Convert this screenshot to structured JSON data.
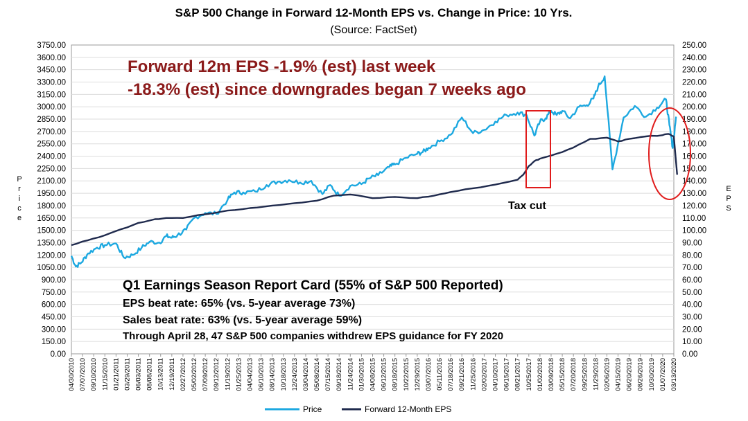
{
  "chart_data": {
    "type": "line",
    "title": "S&P 500 Change in Forward 12-Month EPS vs. Change in Price: 10 Yrs.",
    "subtitle": "(Source: FactSet)",
    "ylabel_left": "Price",
    "ylabel_right": "EPS",
    "ylim_left": [
      0,
      3750
    ],
    "ylim_right": [
      0,
      250
    ],
    "y_ticks_left": [
      "0.00",
      "150.00",
      "300.00",
      "450.00",
      "600.00",
      "750.00",
      "900.00",
      "1050.00",
      "1200.00",
      "1350.00",
      "1500.00",
      "1650.00",
      "1800.00",
      "1950.00",
      "2100.00",
      "2250.00",
      "2400.00",
      "2550.00",
      "2700.00",
      "2850.00",
      "3000.00",
      "3150.00",
      "3300.00",
      "3450.00",
      "3600.00",
      "3750.00"
    ],
    "y_ticks_right": [
      "0.00",
      "10.00",
      "20.00",
      "30.00",
      "40.00",
      "50.00",
      "60.00",
      "70.00",
      "80.00",
      "90.00",
      "100.00",
      "110.00",
      "120.00",
      "130.00",
      "140.00",
      "150.00",
      "160.00",
      "170.00",
      "180.00",
      "190.00",
      "200.00",
      "210.00",
      "220.00",
      "230.00",
      "240.00",
      "250.00"
    ],
    "x_tick_labels": [
      "04/30/2010",
      "07/07/2010",
      "09/10/2010",
      "11/15/2010",
      "01/21/2011",
      "03/29/2011",
      "06/03/2011",
      "08/08/2011",
      "10/13/2011",
      "12/19/2011",
      "02/27/2012",
      "05/02/2012",
      "07/09/2012",
      "09/12/2012",
      "11/19/2012",
      "01/25/2013",
      "04/04/2013",
      "06/10/2013",
      "08/14/2013",
      "10/18/2013",
      "12/24/2013",
      "03/04/2014",
      "05/08/2014",
      "07/15/2014",
      "09/18/2014",
      "11/24/2014",
      "01/30/2015",
      "04/08/2015",
      "06/12/2015",
      "08/18/2015",
      "10/22/2015",
      "12/29/2015",
      "03/07/2016",
      "05/11/2016",
      "07/18/2016",
      "09/21/2016",
      "11/25/2016",
      "02/02/2017",
      "04/10/2017",
      "06/15/2017",
      "08/21/2017",
      "10/25/2017",
      "01/02/2018",
      "03/09/2018",
      "05/15/2018",
      "07/20/2018",
      "09/25/2018",
      "11/29/2018",
      "02/06/2019",
      "04/15/2019",
      "06/20/2019",
      "08/26/2019",
      "10/30/2019",
      "01/07/2020",
      "03/13/2020"
    ],
    "series": [
      {
        "name": "Price",
        "axis": "left",
        "color": "#1ca8e0",
        "x": [
          0,
          0.4,
          0.9,
          1.5,
          2.3,
          3.0,
          4.0,
          4.7,
          5.5,
          6.3,
          7.0,
          7.9,
          8.5,
          9.0,
          9.5,
          10.3,
          11.0,
          12.0,
          13.0,
          14.0,
          14.6,
          15.4,
          16.5,
          17.5,
          18.5,
          19.5,
          20.5,
          21.5,
          22.5,
          23.2,
          24.0,
          25.0,
          26.0,
          26.7,
          27.5,
          28.5,
          29.0,
          30.0,
          31.0,
          31.5,
          32.0,
          33.0,
          34.0,
          35.0,
          36.0,
          37.0,
          38.0,
          39.0,
          40.0,
          40.8,
          41.5,
          42.0,
          42.5,
          43.0,
          43.5,
          44.0,
          44.7,
          45.5,
          46.2,
          46.8,
          47.2,
          47.8,
          48.5,
          49.5,
          50.5,
          51.5,
          52.5,
          53.3,
          53.6,
          53.9,
          54.2
        ],
        "values": [
          1190,
          1060,
          1110,
          1220,
          1290,
          1320,
          1340,
          1170,
          1200,
          1290,
          1360,
          1350,
          1430,
          1410,
          1440,
          1510,
          1650,
          1710,
          1700,
          1870,
          1960,
          1960,
          1970,
          2050,
          2090,
          2110,
          2080,
          2100,
          1940,
          2050,
          1920,
          2040,
          2060,
          2130,
          2170,
          2270,
          2300,
          2380,
          2430,
          2450,
          2500,
          2580,
          2660,
          2870,
          2680,
          2720,
          2820,
          2900,
          2930,
          2900,
          2650,
          2820,
          2860,
          2950,
          2900,
          2950,
          2860,
          3000,
          3020,
          3100,
          3240,
          3370,
          2240,
          2870,
          3010,
          2880,
          2990,
          3090,
          2780,
          2500,
          2880
        ],
        "note": "Price values indexed by x tick position (0 = 04/30/2010, 54 = 03/13/2020). Approximate reads."
      },
      {
        "name": "Forward 12-Month EPS",
        "axis": "right",
        "color": "#1f2a4d",
        "x": [
          0,
          1.5,
          3.0,
          4.5,
          6.0,
          7.5,
          8.5,
          10.0,
          12.0,
          14.0,
          16.0,
          18.0,
          20.0,
          22.0,
          23.5,
          25.0,
          27.0,
          29.0,
          31.0,
          32.5,
          34.0,
          36.0,
          38.0,
          40.0,
          40.5,
          41.0,
          41.5,
          42.0,
          43.5,
          45.0,
          46.5,
          48.0,
          49.0,
          50.0,
          51.5,
          53.0,
          53.5,
          54.0,
          54.3
        ],
        "values": [
          88,
          92,
          96,
          101,
          106,
          109,
          110,
          110,
          113,
          116,
          118,
          120,
          122,
          124,
          128,
          129,
          126,
          127,
          126,
          128,
          131,
          134,
          137,
          141,
          145,
          152,
          156,
          158,
          162,
          167,
          174,
          175,
          172,
          174,
          176,
          177,
          178,
          176,
          145
        ],
        "note": "EPS values on right axis. Approximate reads."
      }
    ],
    "legend": [
      "Price",
      "Forward 12-Month EPS"
    ],
    "legend_position": "bottom-center",
    "annotations": {
      "headline_1": "Forward 12m EPS -1.9% (est) last week",
      "headline_2": "-18.3% (est) since downgrades began 7 weeks ago",
      "tax_cut": "Tax cut",
      "report_title": "Q1 Earnings Season Report Card (55% of S&P 500 Reported)",
      "report_line1": "EPS beat rate: 65% (vs. 5-year average 73%)",
      "report_line2": "Sales beat rate: 63% (vs. 5-year average 59%)",
      "report_line3": "Through April 28, 47 S&P 500 companies withdrew EPS guidance for FY 2020"
    },
    "highlight_colors": {
      "box": "#e01b1b",
      "ellipse": "#e01b1b"
    }
  }
}
